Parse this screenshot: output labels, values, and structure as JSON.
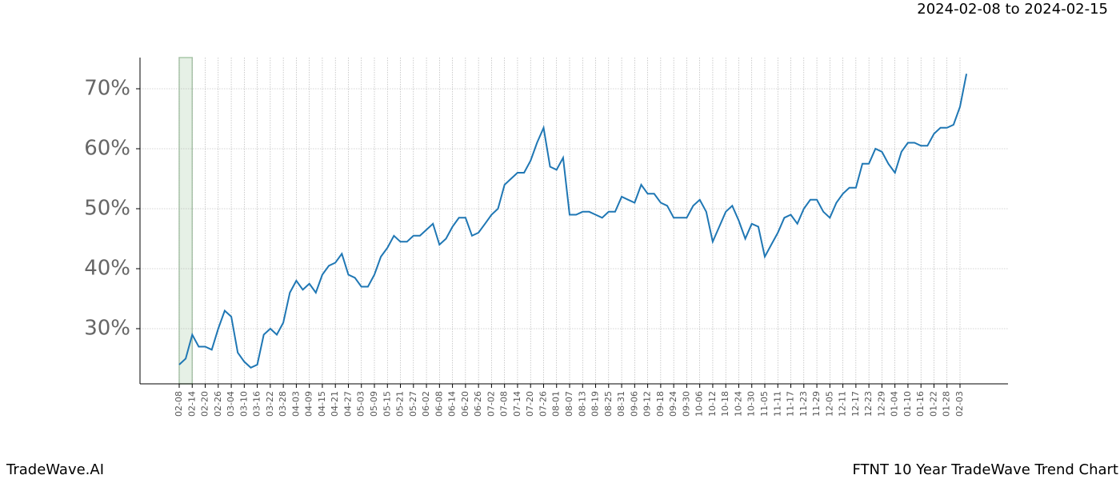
{
  "chart_data": {
    "type": "line",
    "subtitle": "2024-02-08 to 2024-02-15",
    "footer_left": "TradeWave.AI",
    "footer_right": "FTNT 10 Year TradeWave Trend Chart",
    "categories": [
      "02-08",
      null,
      "02-14",
      null,
      "02-20",
      null,
      "02-26",
      null,
      "03-04",
      null,
      "03-10",
      null,
      "03-16",
      null,
      "03-22",
      null,
      "03-28",
      null,
      "04-03",
      null,
      "04-09",
      null,
      "04-15",
      null,
      "04-21",
      null,
      "04-27",
      null,
      "05-03",
      null,
      "05-09",
      null,
      "05-15",
      null,
      "05-21",
      null,
      "05-27",
      null,
      "06-02",
      null,
      "06-08",
      null,
      "06-14",
      null,
      "06-20",
      null,
      "06-26",
      null,
      "07-02",
      null,
      "07-08",
      null,
      "07-14",
      null,
      "07-20",
      null,
      "07-26",
      null,
      "08-01",
      null,
      "08-07",
      null,
      "08-13",
      null,
      "08-19",
      null,
      "08-25",
      null,
      "08-31",
      null,
      "09-06",
      null,
      "09-12",
      null,
      "09-18",
      null,
      "09-24",
      null,
      "09-30",
      null,
      "10-06",
      null,
      "10-12",
      null,
      "10-18",
      null,
      "10-24",
      null,
      "10-30",
      null,
      "11-05",
      null,
      "11-11",
      null,
      "11-17",
      null,
      "11-23",
      null,
      "11-29",
      null,
      "12-05",
      null,
      "12-11",
      null,
      "12-17",
      null,
      "12-23",
      null,
      "12-29",
      null,
      "01-04",
      null,
      "01-10",
      null,
      "01-16",
      null,
      "01-22",
      null,
      "01-28",
      null,
      "02-03",
      null
    ],
    "series": [
      {
        "color": "#1f77b4",
        "values": [
          24,
          25,
          29,
          27,
          27,
          26.5,
          30,
          33,
          32,
          26,
          24.5,
          23.5,
          24,
          29,
          30,
          29,
          31,
          36,
          38,
          36.5,
          37.5,
          36,
          39,
          40.5,
          41,
          42.5,
          39,
          38.5,
          37,
          37,
          39,
          42,
          43.5,
          45.5,
          44.5,
          44.5,
          45.5,
          45.5,
          46.5,
          47.5,
          44,
          45,
          47,
          48.5,
          48.5,
          45.5,
          46,
          47.5,
          49,
          50,
          54,
          55,
          56,
          56,
          58,
          61,
          63.5,
          57,
          56.5,
          58.5,
          49,
          49,
          49.5,
          49.5,
          49,
          48.5,
          49.5,
          49.5,
          52,
          51.5,
          51,
          54,
          52.5,
          52.5,
          51,
          50.5,
          48.5,
          48.5,
          48.5,
          50.5,
          51.5,
          49.5,
          44.5,
          47,
          49.5,
          50.5,
          48,
          45,
          47.5,
          47,
          42,
          44,
          46,
          48.5,
          49,
          47.5,
          50,
          51.5,
          51.5,
          49.5,
          48.5,
          51,
          52.5,
          53.5,
          53.5,
          57.5,
          57.5,
          60,
          59.5,
          57.5,
          56,
          59.5,
          61,
          61,
          60.5,
          60.5,
          62.5,
          63.5,
          63.5,
          64,
          67,
          72.5
        ]
      }
    ],
    "ylim": [
      20.8,
      75.2
    ],
    "yticks": [
      {
        "value": 30,
        "label": "30%"
      },
      {
        "value": 40,
        "label": "40%"
      },
      {
        "value": 50,
        "label": "50%"
      },
      {
        "value": 60,
        "label": "60%"
      },
      {
        "value": 70,
        "label": "70%"
      }
    ],
    "grid": true
  }
}
